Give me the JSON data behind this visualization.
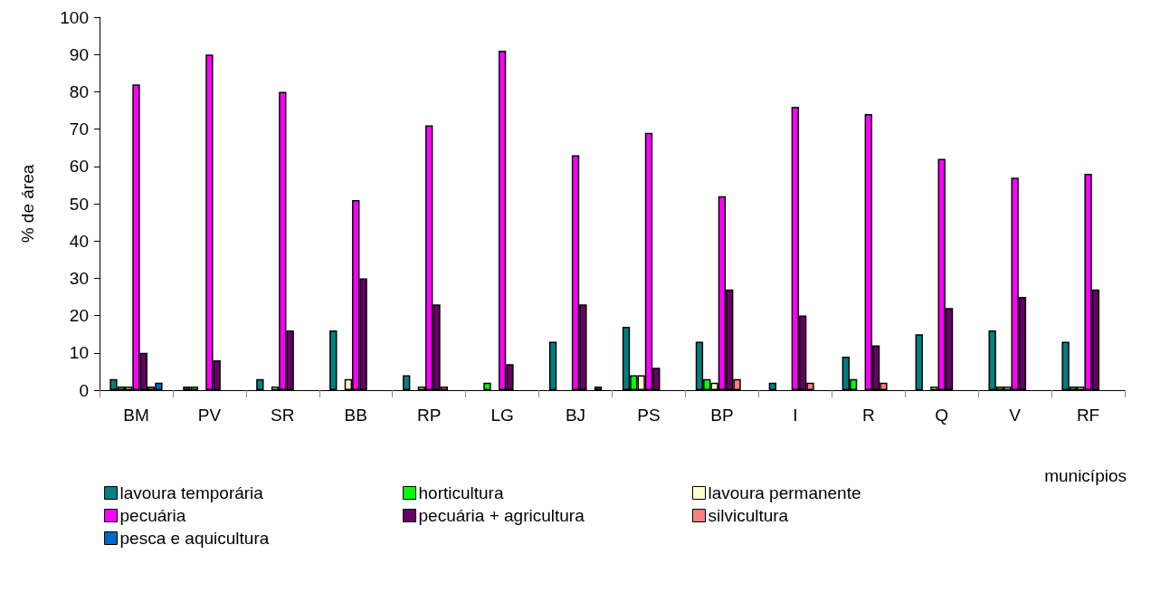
{
  "chart_data": {
    "type": "bar",
    "xlabel": "municípios",
    "ylabel": "% de área",
    "categories": [
      "BM",
      "PV",
      "SR",
      "BB",
      "RP",
      "LG",
      "BJ",
      "PS",
      "BP",
      "I",
      "R",
      "Q",
      "V",
      "RF"
    ],
    "series": [
      {
        "name": "lavoura temporária",
        "color": "#008080",
        "values": [
          3,
          1,
          3,
          16,
          4,
          0,
          13,
          17,
          13,
          2,
          9,
          15,
          16,
          13
        ]
      },
      {
        "name": "horticultura",
        "color": "#00ff00",
        "values": [
          1,
          1,
          0,
          0,
          0,
          2,
          0,
          4,
          3,
          0,
          3,
          0,
          1,
          1
        ]
      },
      {
        "name": "lavoura permanente",
        "color": "#ffffcc",
        "values": [
          1,
          0,
          1,
          3,
          1,
          0,
          0,
          4,
          2,
          0,
          0,
          1,
          1,
          1
        ]
      },
      {
        "name": "pecuária",
        "color": "#ff00ff",
        "values": [
          82,
          90,
          80,
          51,
          71,
          91,
          63,
          69,
          52,
          76,
          74,
          62,
          57,
          58
        ]
      },
      {
        "name": "pecuária + agricultura",
        "color": "#660066",
        "values": [
          10,
          8,
          16,
          30,
          23,
          7,
          23,
          6,
          27,
          20,
          12,
          22,
          25,
          27
        ]
      },
      {
        "name": "silvicultura",
        "color": "#ff8080",
        "values": [
          1,
          0,
          0,
          0,
          1,
          0,
          0,
          0,
          3,
          2,
          2,
          0,
          0,
          0
        ]
      },
      {
        "name": "pesca e aquicultura",
        "color": "#0066cc",
        "values": [
          2,
          0,
          0,
          0,
          0,
          0,
          1,
          0,
          0,
          0,
          0,
          0,
          0,
          0
        ]
      }
    ],
    "ylim": [
      0,
      100
    ],
    "yticks": [
      0,
      10,
      20,
      30,
      40,
      50,
      60,
      70,
      80,
      90,
      100
    ],
    "grid": false,
    "legend": "bottom"
  }
}
